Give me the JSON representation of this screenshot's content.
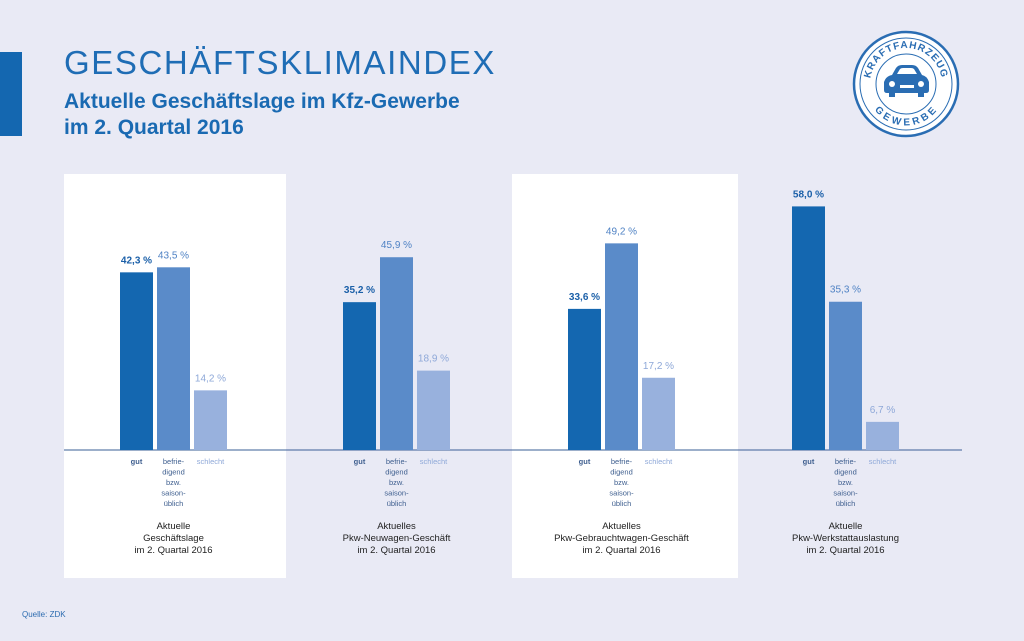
{
  "header": {
    "title": "GESCHÄFTSKLIMAINDEX",
    "subtitle_line1": "Aktuelle Geschäftslage im Kfz-Gewerbe",
    "subtitle_line2": "im 2. Quartal 2016"
  },
  "logo": {
    "text_top": "KRAFTFAHRZEUG",
    "text_bottom": "GEWERBE"
  },
  "source": "Quelle: ZDK",
  "colors": {
    "gut": "#1467b0",
    "befriedigend": "#5a8bc9",
    "schlecht": "#98b1dd",
    "title": "#1f6db5",
    "background": "#e9eaf5"
  },
  "chart_data": [
    {
      "type": "bar",
      "categories": [
        "gut",
        "befriedigend bzw. saisonüblich",
        "schlecht"
      ],
      "category_label_lines": [
        [
          "gut"
        ],
        [
          "befrie-",
          "digend",
          "bzw.",
          "saison-",
          "üblich"
        ],
        [
          "schlecht"
        ]
      ],
      "values": [
        42.3,
        43.5,
        14.2
      ],
      "value_labels": [
        "42,3 %",
        "43,5 %",
        "14,2 %"
      ],
      "caption": [
        "Aktuelle",
        "Geschäftslage",
        "im  2. Quartal 2016"
      ],
      "unit": "%"
    },
    {
      "type": "bar",
      "categories": [
        "gut",
        "befriedigend bzw. saisonüblich",
        "schlecht"
      ],
      "category_label_lines": [
        [
          "gut"
        ],
        [
          "befrie-",
          "digend",
          "bzw.",
          "saison-",
          "üblich"
        ],
        [
          "schlecht"
        ]
      ],
      "values": [
        35.2,
        45.9,
        18.9
      ],
      "value_labels": [
        "35,2 %",
        "45,9 %",
        "18,9 %"
      ],
      "caption": [
        "Aktuelles",
        "Pkw-Neuwagen-Geschäft",
        "im 2. Quartal 2016"
      ],
      "unit": "%"
    },
    {
      "type": "bar",
      "categories": [
        "gut",
        "befriedigend bzw. saisonüblich",
        "schlecht"
      ],
      "category_label_lines": [
        [
          "gut"
        ],
        [
          "befrie-",
          "digend",
          "bzw.",
          "saison-",
          "üblich"
        ],
        [
          "schlecht"
        ]
      ],
      "values": [
        33.6,
        49.2,
        17.2
      ],
      "value_labels": [
        "33,6 %",
        "49,2 %",
        "17,2 %"
      ],
      "caption": [
        "Aktuelles",
        "Pkw-Gebrauchtwagen-Geschäft",
        "im  2. Quartal 2016"
      ],
      "unit": "%"
    },
    {
      "type": "bar",
      "categories": [
        "gut",
        "befriedigend bzw. saisonüblich",
        "schlecht"
      ],
      "category_label_lines": [
        [
          "gut"
        ],
        [
          "befrie-",
          "digend",
          "bzw.",
          "saison-",
          "üblich"
        ],
        [
          "schlecht"
        ]
      ],
      "values": [
        58.0,
        35.3,
        6.7
      ],
      "value_labels": [
        "58,0 %",
        "35,3 %",
        "6,7 %"
      ],
      "caption": [
        "Aktuelle",
        "Pkw-Werkstattauslastung",
        "im  2. Quartal 2016"
      ],
      "unit": "%"
    }
  ]
}
